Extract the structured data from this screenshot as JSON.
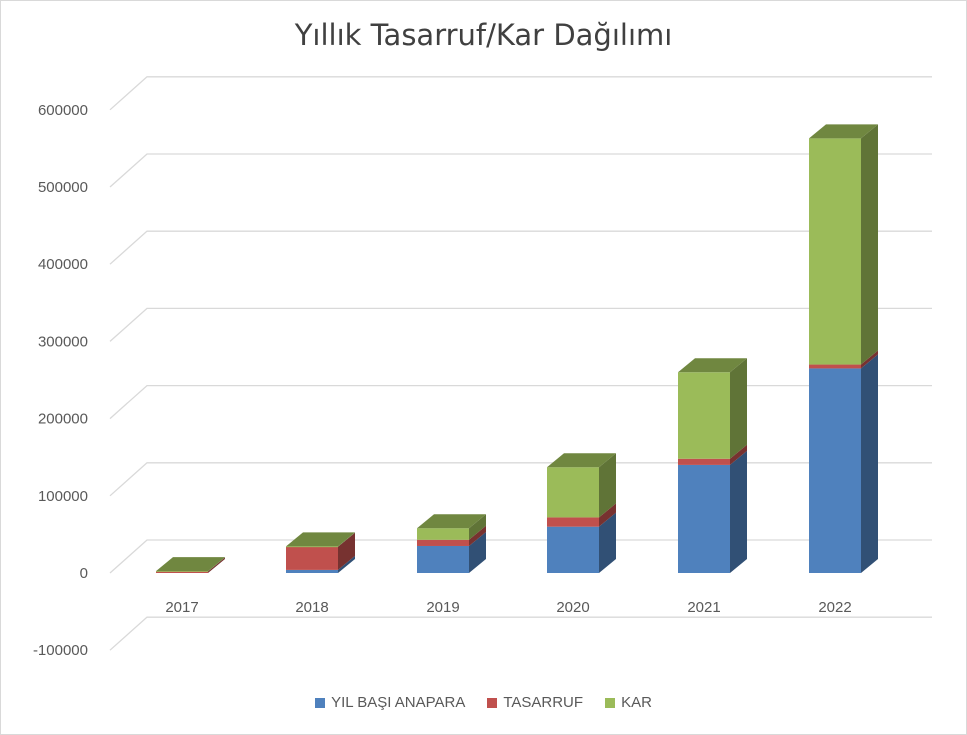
{
  "chart_data": {
    "type": "bar",
    "stacked": true,
    "style": "3d",
    "title": "Yıllık Tasarruf/Kar Dağılımı",
    "categories": [
      "2017",
      "2018",
      "2019",
      "2020",
      "2021",
      "2022"
    ],
    "series": [
      {
        "name": "YIL BAŞI ANAPARA",
        "color": "#4f81bd",
        "values": [
          0,
          4000,
          35000,
          60000,
          140000,
          265000
        ]
      },
      {
        "name": "TASARRUF",
        "color": "#c0504d",
        "values": [
          2000,
          30000,
          8000,
          12000,
          8000,
          5000
        ]
      },
      {
        "name": "KAR",
        "color": "#9bbb59",
        "values": [
          500,
          500,
          15000,
          65000,
          112000,
          293000
        ]
      }
    ],
    "y_ticks": [
      "-100000",
      "0",
      "100000",
      "200000",
      "300000",
      "400000",
      "500000",
      "600000"
    ],
    "ylim": [
      -100000,
      700000
    ],
    "grid": true,
    "legend_position": "bottom"
  }
}
